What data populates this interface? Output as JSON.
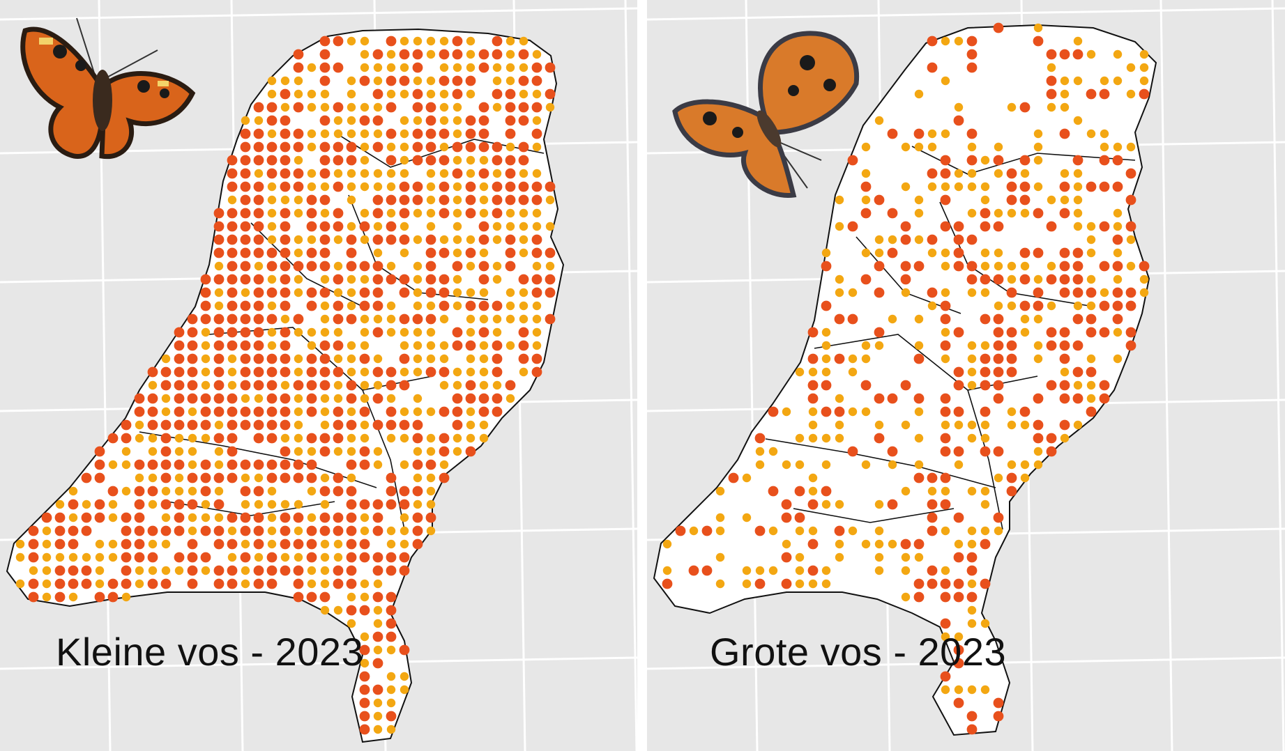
{
  "maps": [
    {
      "id": "kleine-vos",
      "caption": "Kleine vos - 2023",
      "density_high": 0.45,
      "density_low": 0.42,
      "butterfly": "small-tortoiseshell-photo"
    },
    {
      "id": "grote-vos",
      "caption": "Grote vos - 2023",
      "density_high": 0.16,
      "density_low": 0.24,
      "butterfly": "large-tortoiseshell-photo"
    }
  ],
  "colors": {
    "background": "#e7e7e7",
    "grid": "#ffffff",
    "land": "#ffffff",
    "border": "#111111",
    "dot_high": "#e8501c",
    "dot_low": "#f3a712"
  },
  "legend_meaning": {
    "dot_high_icon": "red-dot-icon",
    "dot_low_icon": "orange-dot-icon"
  }
}
